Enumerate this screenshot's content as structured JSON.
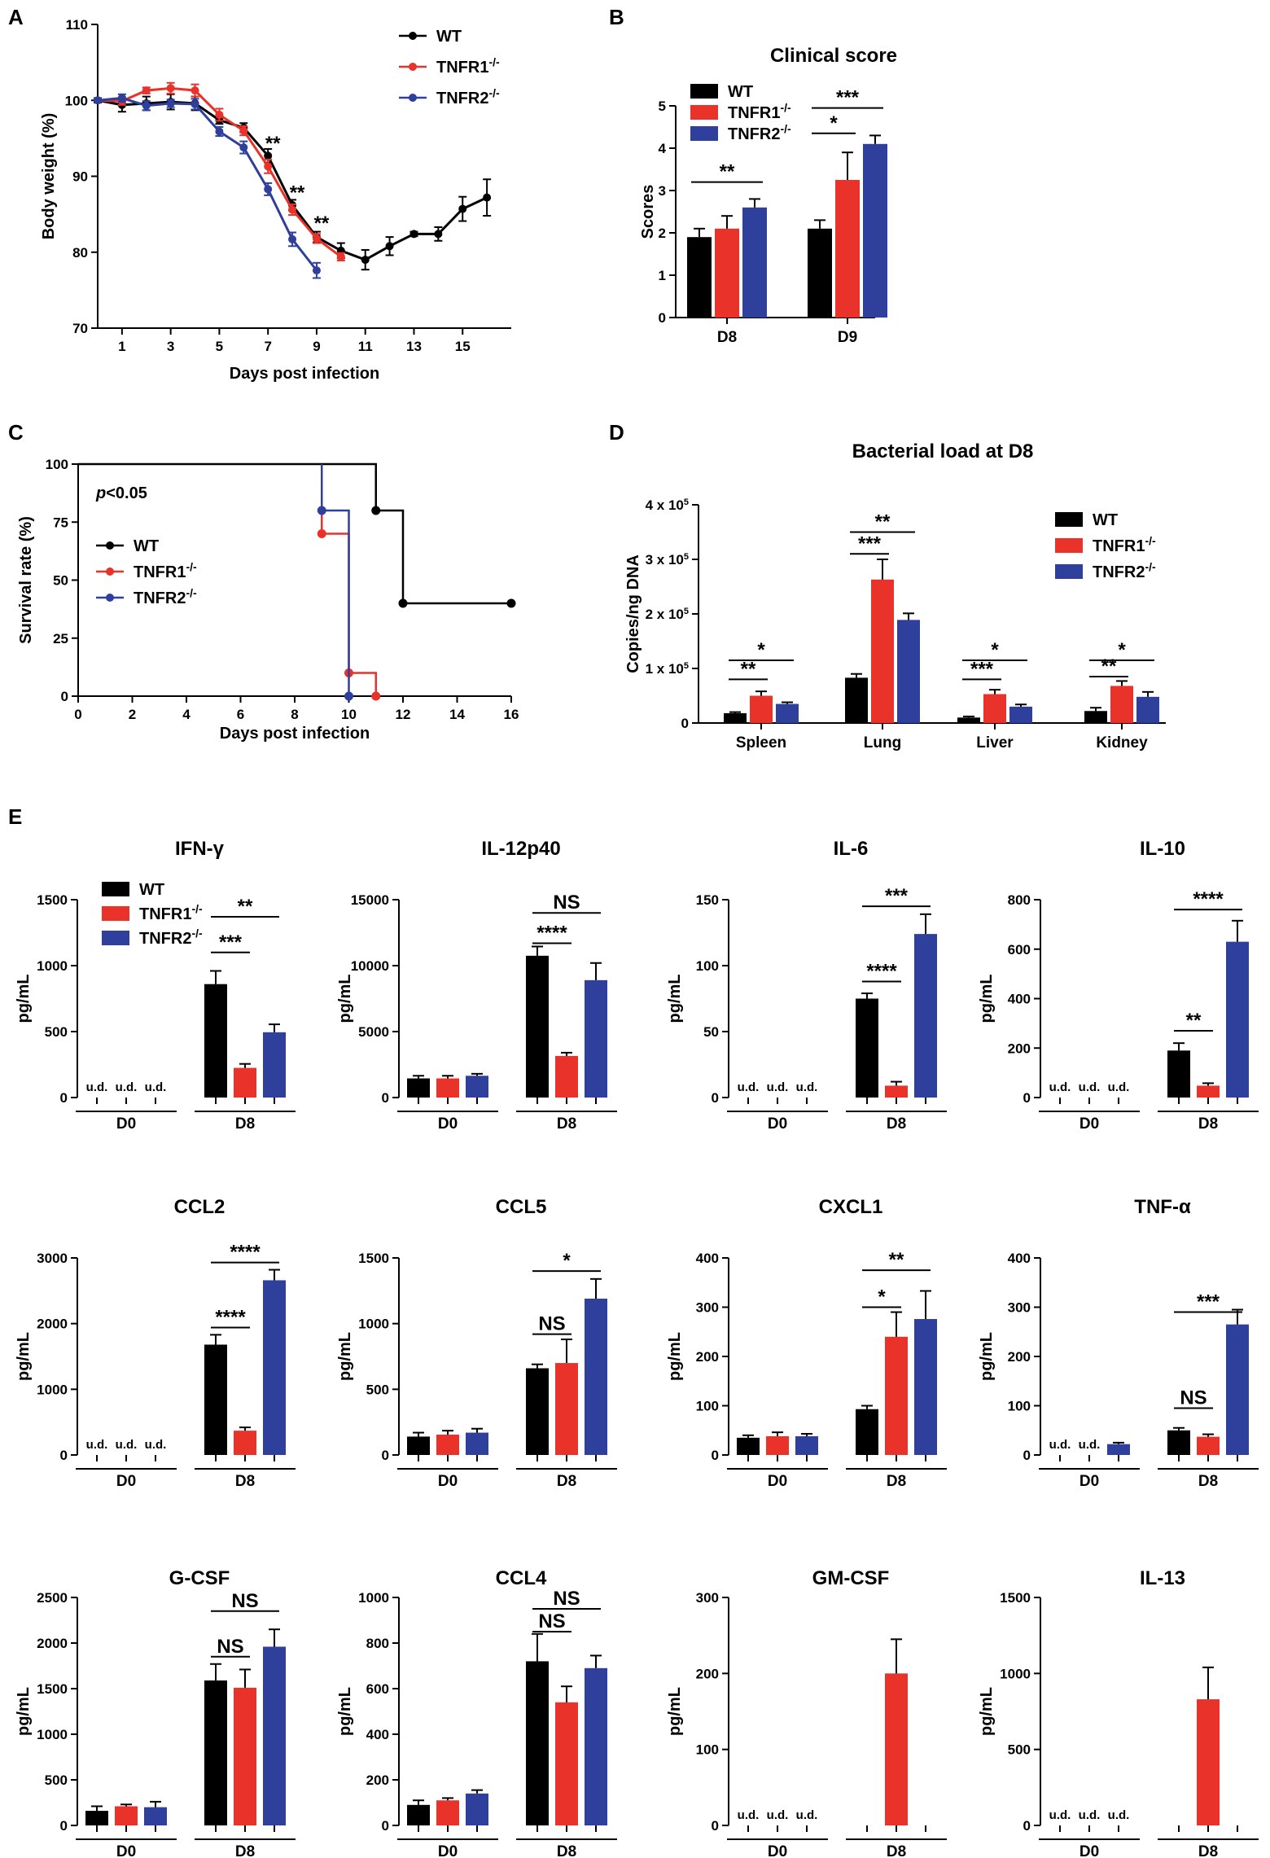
{
  "colors": {
    "WT": "#000000",
    "TNFR1": "#e8322a",
    "TNFR2": "#2f3f9c"
  },
  "legend": {
    "wt": "WT",
    "tnfr1_base": "TNFR1",
    "tnfr2_base": "TNFR2",
    "ko_sup": "-/-"
  },
  "panels": {
    "A": "A",
    "B": "B",
    "C": "C",
    "D": "D",
    "E": "E"
  },
  "chart_data": [
    {
      "id": "A",
      "type": "line",
      "title": "",
      "xlabel": "Days post infection",
      "ylabel": "Body weight (%)",
      "xlim": [
        0,
        17
      ],
      "ylim": [
        70,
        110
      ],
      "xticks": [
        1,
        3,
        5,
        7,
        9,
        11,
        13,
        15
      ],
      "yticks": [
        70,
        80,
        90,
        100,
        110
      ],
      "series": [
        {
          "name": "WT",
          "key": "WT",
          "x": [
            0,
            1,
            2,
            3,
            4,
            5,
            6,
            7,
            8,
            9,
            10,
            11,
            12,
            13,
            14,
            15,
            16
          ],
          "values": [
            100,
            99.4,
            99.6,
            99.8,
            99.6,
            97.4,
            96.4,
            92.7,
            86.2,
            82.0,
            80.2,
            79.0,
            80.8,
            82.4,
            82.4,
            85.7,
            87.2
          ],
          "err": [
            0.3,
            0.9,
            0.9,
            1.0,
            0.9,
            0.5,
            0.6,
            0.9,
            0.7,
            0.7,
            1.0,
            1.3,
            1.2,
            0.3,
            0.9,
            1.6,
            2.4
          ]
        },
        {
          "name": "TNFR1",
          "key": "TNFR1",
          "x": [
            0,
            1,
            2,
            3,
            4,
            5,
            6,
            7,
            8,
            9,
            10
          ],
          "values": [
            100,
            99.9,
            101.3,
            101.6,
            101.3,
            98.1,
            96.0,
            91.3,
            85.6,
            81.8,
            79.4
          ],
          "err": [
            0.2,
            0.5,
            0.4,
            0.7,
            0.8,
            0.8,
            0.6,
            0.9,
            0.7,
            0.6,
            0.5
          ]
        },
        {
          "name": "TNFR2",
          "key": "TNFR2",
          "x": [
            0,
            1,
            2,
            3,
            4,
            5,
            6,
            7,
            8,
            9
          ],
          "values": [
            100,
            100.3,
            99.3,
            99.6,
            99.5,
            95.9,
            93.8,
            88.3,
            81.7,
            77.6
          ],
          "err": [
            0.2,
            0.5,
            0.6,
            0.5,
            0.7,
            0.6,
            0.8,
            0.8,
            0.9,
            1.0
          ]
        }
      ],
      "annotations": [
        {
          "x": 7,
          "y": 93.5,
          "text": "**"
        },
        {
          "x": 8,
          "y": 87,
          "text": "**"
        },
        {
          "x": 9,
          "y": 83,
          "text": "**"
        }
      ]
    },
    {
      "id": "B",
      "type": "bar",
      "title": "Clinical score",
      "xlabel": "",
      "ylabel": "Scores",
      "ylim": [
        0,
        5
      ],
      "yticks": [
        0,
        1,
        2,
        3,
        4,
        5
      ],
      "categories": [
        "D8",
        "D9"
      ],
      "series": [
        {
          "name": "WT",
          "key": "WT",
          "values": [
            1.9,
            2.1
          ],
          "err": [
            0.2,
            0.2
          ]
        },
        {
          "name": "TNFR1",
          "key": "TNFR1",
          "values": [
            2.1,
            3.25
          ],
          "err": [
            0.3,
            0.65
          ]
        },
        {
          "name": "TNFR2",
          "key": "TNFR2",
          "values": [
            2.6,
            4.1
          ],
          "err": [
            0.2,
            0.2
          ]
        }
      ],
      "sig": [
        {
          "cat": 0,
          "a": 0,
          "b": 2,
          "y": 3.2,
          "text": "**"
        },
        {
          "cat": 1,
          "a": 0,
          "b": 1,
          "y": 4.35,
          "text": "*"
        },
        {
          "cat": 1,
          "a": 0,
          "b": 2,
          "y": 4.95,
          "text": "***"
        }
      ]
    },
    {
      "id": "C",
      "type": "line",
      "title": "",
      "xlabel": "Days post infection",
      "ylabel": "Survival rate (%)",
      "xlim": [
        0,
        16
      ],
      "ylim": [
        0,
        100
      ],
      "xticks": [
        0,
        2,
        4,
        6,
        8,
        10,
        12,
        14,
        16
      ],
      "yticks": [
        0,
        25,
        50,
        75,
        100
      ],
      "annotation_text": "p<0.05",
      "annotation_p": "p",
      "annotation_rest": "<0.05",
      "series": [
        {
          "name": "WT",
          "key": "WT",
          "x": [
            0,
            11,
            11,
            12,
            12,
            16
          ],
          "values": [
            100,
            100,
            80,
            80,
            40,
            40
          ],
          "markers": [
            [
              11,
              80
            ],
            [
              12,
              40
            ],
            [
              16,
              40
            ]
          ]
        },
        {
          "name": "TNFR1",
          "key": "TNFR1",
          "x": [
            9,
            9,
            10,
            10,
            11,
            11
          ],
          "values": [
            100,
            70,
            70,
            10,
            10,
            0
          ],
          "markers": [
            [
              9,
              70
            ],
            [
              10,
              10
            ],
            [
              11,
              0
            ]
          ]
        },
        {
          "name": "TNFR2",
          "key": "TNFR2",
          "x": [
            9,
            9,
            10,
            10
          ],
          "values": [
            100,
            80,
            80,
            0
          ],
          "markers": [
            [
              9,
              80
            ],
            [
              10,
              0
            ]
          ]
        }
      ]
    },
    {
      "id": "D",
      "type": "bar",
      "title": "Bacterial load at D8",
      "xlabel": "",
      "ylabel": "Copies/ng DNA",
      "ylim": [
        0,
        400000
      ],
      "yticks": [
        0,
        100000,
        200000,
        300000,
        400000
      ],
      "ytick_labels": [
        "0",
        "1 x 10",
        "2 x 10",
        "3 x 10",
        "4 x 10"
      ],
      "ytick_sup": "5",
      "categories": [
        "Spleen",
        "Lung",
        "Liver",
        "Kidney"
      ],
      "series": [
        {
          "name": "WT",
          "key": "WT",
          "values": [
            18000,
            83000,
            10000,
            22000
          ],
          "err": [
            2000,
            7000,
            2000,
            6000
          ]
        },
        {
          "name": "TNFR1",
          "key": "TNFR1",
          "values": [
            50000,
            263000,
            53000,
            68000
          ],
          "err": [
            8000,
            37000,
            8000,
            9000
          ]
        },
        {
          "name": "TNFR2",
          "key": "TNFR2",
          "values": [
            35000,
            189000,
            30000,
            48000
          ],
          "err": [
            3000,
            12000,
            4000,
            9000
          ]
        }
      ],
      "sig": [
        {
          "cat": 0,
          "a": 0,
          "b": 1,
          "y": 80000,
          "text": "**"
        },
        {
          "cat": 0,
          "a": 0,
          "b": 2,
          "y": 115000,
          "text": "*"
        },
        {
          "cat": 1,
          "a": 0,
          "b": 1,
          "y": 310000,
          "text": "***"
        },
        {
          "cat": 1,
          "a": 0,
          "b": 2,
          "y": 350000,
          "text": "**"
        },
        {
          "cat": 2,
          "a": 0,
          "b": 1,
          "y": 80000,
          "text": "***"
        },
        {
          "cat": 2,
          "a": 0,
          "b": 2,
          "y": 115000,
          "text": "*"
        },
        {
          "cat": 3,
          "a": 0,
          "b": 1,
          "y": 85000,
          "text": "**"
        },
        {
          "cat": 3,
          "a": 0,
          "b": 2,
          "y": 115000,
          "text": "*"
        }
      ]
    },
    {
      "id": "E-IFNg",
      "type": "bar",
      "title": "IFN-γ",
      "ylabel": "pg/mL",
      "ylim": [
        0,
        1500
      ],
      "yticks": [
        0,
        500,
        1000,
        1500
      ],
      "groups": [
        "D0",
        "D8"
      ],
      "values": [
        [
          0,
          0,
          0
        ],
        [
          860,
          225,
          495
        ]
      ],
      "err": [
        [
          0,
          0,
          0
        ],
        [
          100,
          30,
          60
        ]
      ],
      "ud": [
        true,
        true,
        true
      ],
      "sig": [
        {
          "a": 0,
          "b": 1,
          "y": 1100,
          "text": "***"
        },
        {
          "a": 0,
          "b": 2,
          "y": 1370,
          "text": "**"
        }
      ],
      "legend": true
    },
    {
      "id": "E-IL12p40",
      "type": "bar",
      "title": "IL-12p40",
      "ylabel": "pg/mL",
      "ylim": [
        0,
        15000
      ],
      "yticks": [
        0,
        5000,
        10000,
        15000
      ],
      "groups": [
        "D0",
        "D8"
      ],
      "values": [
        [
          1450,
          1450,
          1650
        ],
        [
          10750,
          3150,
          8900
        ]
      ],
      "err": [
        [
          200,
          200,
          150
        ],
        [
          700,
          250,
          1300
        ]
      ],
      "ud": [
        false,
        false,
        false
      ],
      "sig": [
        {
          "a": 0,
          "b": 1,
          "y": 11700,
          "text": "****"
        },
        {
          "a": 0,
          "b": 2,
          "y": 14000,
          "text": "NS"
        }
      ]
    },
    {
      "id": "E-IL6",
      "type": "bar",
      "title": "IL-6",
      "ylabel": "pg/mL",
      "ylim": [
        0,
        150
      ],
      "yticks": [
        0,
        50,
        100,
        150
      ],
      "groups": [
        "D0",
        "D8"
      ],
      "values": [
        [
          0,
          0,
          0
        ],
        [
          75,
          9,
          124
        ]
      ],
      "err": [
        [
          0,
          0,
          0
        ],
        [
          4,
          3,
          15
        ]
      ],
      "ud": [
        true,
        true,
        true
      ],
      "sig": [
        {
          "a": 0,
          "b": 1,
          "y": 88,
          "text": "****"
        },
        {
          "a": 0,
          "b": 2,
          "y": 145,
          "text": "***"
        }
      ]
    },
    {
      "id": "E-IL10",
      "type": "bar",
      "title": "IL-10",
      "ylabel": "pg/mL",
      "ylim": [
        0,
        800
      ],
      "yticks": [
        0,
        200,
        400,
        600,
        800
      ],
      "groups": [
        "D0",
        "D8"
      ],
      "values": [
        [
          0,
          0,
          0
        ],
        [
          190,
          48,
          630
        ]
      ],
      "err": [
        [
          0,
          0,
          0
        ],
        [
          30,
          10,
          85
        ]
      ],
      "ud": [
        true,
        true,
        true
      ],
      "sig": [
        {
          "a": 0,
          "b": 1,
          "y": 270,
          "text": "**"
        },
        {
          "a": 0,
          "b": 2,
          "y": 760,
          "text": "****"
        }
      ]
    },
    {
      "id": "E-CCL2",
      "type": "bar",
      "title": "CCL2",
      "ylabel": "pg/mL",
      "ylim": [
        0,
        3000
      ],
      "yticks": [
        0,
        1000,
        2000,
        3000
      ],
      "groups": [
        "D0",
        "D8"
      ],
      "values": [
        [
          0,
          0,
          0
        ],
        [
          1680,
          370,
          2660
        ]
      ],
      "err": [
        [
          0,
          0,
          0
        ],
        [
          150,
          50,
          160
        ]
      ],
      "ud": [
        true,
        true,
        true
      ],
      "sig": [
        {
          "a": 0,
          "b": 1,
          "y": 1940,
          "text": "****"
        },
        {
          "a": 0,
          "b": 2,
          "y": 2930,
          "text": "****"
        }
      ]
    },
    {
      "id": "E-CCL5",
      "type": "bar",
      "title": "CCL5",
      "ylabel": "pg/mL",
      "ylim": [
        0,
        1500
      ],
      "yticks": [
        0,
        500,
        1000,
        1500
      ],
      "groups": [
        "D0",
        "D8"
      ],
      "values": [
        [
          140,
          155,
          170
        ],
        [
          660,
          700,
          1190
        ]
      ],
      "err": [
        [
          30,
          30,
          30
        ],
        [
          30,
          180,
          150
        ]
      ],
      "ud": [
        false,
        false,
        false
      ],
      "sig": [
        {
          "a": 0,
          "b": 1,
          "y": 920,
          "text": "NS"
        },
        {
          "a": 0,
          "b": 2,
          "y": 1400,
          "text": "*"
        }
      ]
    },
    {
      "id": "E-CXCL1",
      "type": "bar",
      "title": "CXCL1",
      "ylabel": "pg/mL",
      "ylim": [
        0,
        400
      ],
      "yticks": [
        0,
        100,
        200,
        300,
        400
      ],
      "groups": [
        "D0",
        "D8"
      ],
      "values": [
        [
          35,
          38,
          38
        ],
        [
          93,
          240,
          276
        ]
      ],
      "err": [
        [
          5,
          8,
          5
        ],
        [
          7,
          50,
          57
        ]
      ],
      "ud": [
        false,
        false,
        false
      ],
      "sig": [
        {
          "a": 0,
          "b": 1,
          "y": 300,
          "text": "*"
        },
        {
          "a": 0,
          "b": 2,
          "y": 375,
          "text": "**"
        }
      ]
    },
    {
      "id": "E-TNFa",
      "type": "bar",
      "title": "TNF-α",
      "ylabel": "pg/mL",
      "ylim": [
        0,
        400
      ],
      "yticks": [
        0,
        100,
        200,
        300,
        400
      ],
      "groups": [
        "D0",
        "D8"
      ],
      "values": [
        [
          0,
          0,
          22
        ],
        [
          50,
          37,
          265
        ]
      ],
      "err": [
        [
          0,
          0,
          3
        ],
        [
          5,
          5,
          30
        ]
      ],
      "ud": [
        true,
        true,
        false
      ],
      "sig": [
        {
          "a": 0,
          "b": 1,
          "y": 95,
          "text": "NS"
        },
        {
          "a": 0,
          "b": 2,
          "y": 290,
          "text": "***"
        }
      ]
    },
    {
      "id": "E-GCSF",
      "type": "bar",
      "title": "G-CSF",
      "ylabel": "pg/mL",
      "ylim": [
        0,
        2500
      ],
      "yticks": [
        0,
        500,
        1000,
        1500,
        2000,
        2500
      ],
      "groups": [
        "D0",
        "D8"
      ],
      "values": [
        [
          160,
          210,
          200
        ],
        [
          1590,
          1510,
          1960
        ]
      ],
      "err": [
        [
          50,
          20,
          60
        ],
        [
          180,
          200,
          190
        ]
      ],
      "ud": [
        false,
        false,
        false
      ],
      "sig": [
        {
          "a": 0,
          "b": 1,
          "y": 1850,
          "text": "NS"
        },
        {
          "a": 0,
          "b": 2,
          "y": 2350,
          "text": "NS"
        }
      ]
    },
    {
      "id": "E-CCL4",
      "type": "bar",
      "title": "CCL4",
      "ylabel": "pg/mL",
      "ylim": [
        0,
        1000
      ],
      "yticks": [
        0,
        200,
        400,
        600,
        800,
        1000
      ],
      "groups": [
        "D0",
        "D8"
      ],
      "values": [
        [
          90,
          110,
          140
        ],
        [
          720,
          540,
          690
        ]
      ],
      "err": [
        [
          20,
          10,
          15
        ],
        [
          120,
          70,
          55
        ]
      ],
      "ud": [
        false,
        false,
        false
      ],
      "sig": [
        {
          "a": 0,
          "b": 1,
          "y": 850,
          "text": "NS"
        },
        {
          "a": 0,
          "b": 2,
          "y": 950,
          "text": "NS"
        }
      ]
    },
    {
      "id": "E-GMCSF",
      "type": "bar",
      "title": "GM-CSF",
      "ylabel": "pg/mL",
      "ylim": [
        0,
        300
      ],
      "yticks": [
        0,
        100,
        200,
        300
      ],
      "groups": [
        "D0",
        "D8"
      ],
      "values": [
        [
          0,
          0,
          0
        ],
        [
          0,
          200,
          0
        ]
      ],
      "err": [
        [
          0,
          0,
          0
        ],
        [
          0,
          45,
          0
        ]
      ],
      "ud": [
        true,
        true,
        true
      ],
      "d8_single": true,
      "sig": []
    },
    {
      "id": "E-IL13",
      "type": "bar",
      "title": "IL-13",
      "ylabel": "pg/mL",
      "ylim": [
        0,
        1500
      ],
      "yticks": [
        0,
        500,
        1000,
        1500
      ],
      "groups": [
        "D0",
        "D8"
      ],
      "values": [
        [
          0,
          0,
          0
        ],
        [
          0,
          830,
          0
        ]
      ],
      "err": [
        [
          0,
          0,
          0
        ],
        [
          0,
          210,
          0
        ]
      ],
      "ud": [
        true,
        true,
        true
      ],
      "d8_single": true,
      "sig": []
    }
  ],
  "ud_label": "u.d."
}
